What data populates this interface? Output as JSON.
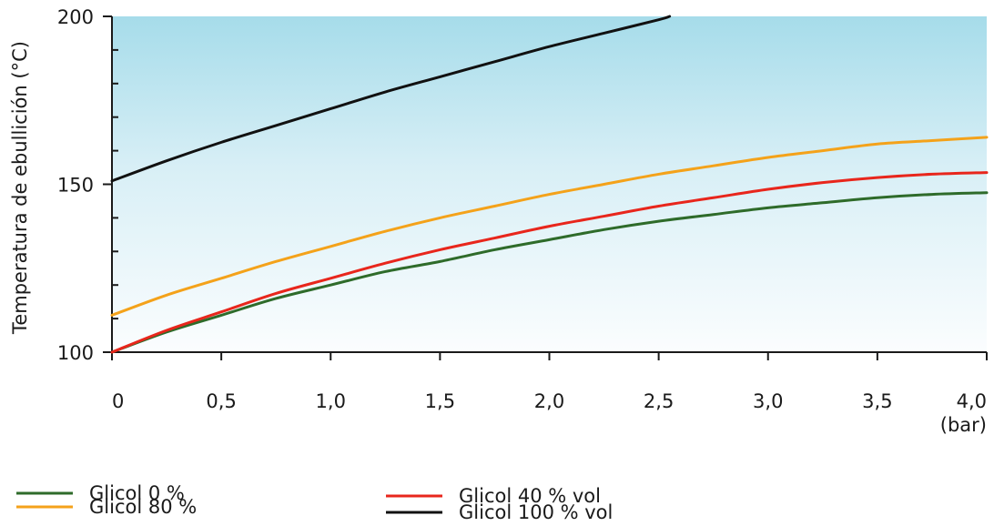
{
  "chart_data": {
    "type": "line",
    "title": "",
    "xlabel": "",
    "x_unit": "(bar)",
    "ylabel": "Temperatura de ebullición (°C)",
    "xlim": [
      0,
      4.0
    ],
    "ylim": [
      100,
      200
    ],
    "x_ticks": [
      "0",
      "0,5",
      "1,0",
      "1,5",
      "2,0",
      "2,5",
      "3,0",
      "3,5",
      "4,0"
    ],
    "x_tick_values": [
      0,
      0.5,
      1.0,
      1.5,
      2.0,
      2.5,
      3.0,
      3.5,
      4.0
    ],
    "y_ticks": [
      "100",
      "150",
      "200"
    ],
    "y_tick_values": [
      100,
      150,
      200
    ],
    "grid": false,
    "legend_position": "bottom",
    "series": [
      {
        "name": "Glicol 0 %",
        "color": "#2e6b2a",
        "x": [
          0,
          0.25,
          0.5,
          0.75,
          1.0,
          1.25,
          1.5,
          1.75,
          2.0,
          2.25,
          2.5,
          2.75,
          3.0,
          3.25,
          3.5,
          3.75,
          4.0
        ],
        "y": [
          100,
          106,
          111,
          116,
          120,
          124,
          127,
          130.5,
          133.5,
          136.5,
          139,
          141,
          143,
          144.5,
          146,
          147,
          147.5
        ]
      },
      {
        "name": "Glicol 80 %",
        "color": "#f4a21a",
        "x": [
          0,
          0.25,
          0.5,
          0.75,
          1.0,
          1.25,
          1.5,
          1.75,
          2.0,
          2.25,
          2.5,
          2.75,
          3.0,
          3.25,
          3.5,
          3.75,
          4.0
        ],
        "y": [
          111,
          117,
          122,
          127,
          131.5,
          136,
          140,
          143.5,
          147,
          150,
          153,
          155.5,
          158,
          160,
          162,
          163,
          164
        ]
      },
      {
        "name": "Glicol 40 % vol",
        "color": "#e8261c",
        "x": [
          0,
          0.25,
          0.5,
          0.75,
          1.0,
          1.25,
          1.5,
          1.75,
          2.0,
          2.25,
          2.5,
          2.75,
          3.0,
          3.25,
          3.5,
          3.75,
          4.0
        ],
        "y": [
          100,
          106.5,
          112,
          117.5,
          122,
          126.5,
          130.5,
          134,
          137.5,
          140.5,
          143.5,
          146,
          148.5,
          150.5,
          152,
          153,
          153.5
        ]
      },
      {
        "name": "Glicol 100 % vol",
        "color": "#111111",
        "x": [
          0,
          0.25,
          0.5,
          0.75,
          1.0,
          1.25,
          1.5,
          1.75,
          2.0,
          2.25,
          2.5,
          2.55
        ],
        "y": [
          151,
          157,
          162.5,
          167.5,
          172.5,
          177.5,
          182,
          186.5,
          191,
          195,
          199,
          200
        ]
      }
    ]
  }
}
